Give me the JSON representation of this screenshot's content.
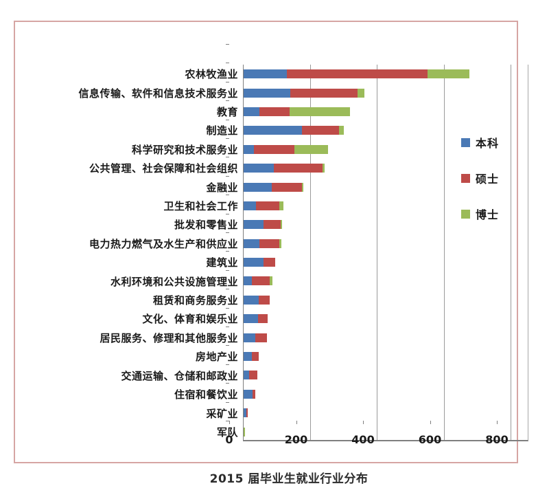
{
  "title": "2015 届毕业生就业行业分布",
  "colors": {
    "frame_border": "#D6A5A3",
    "gridline": "#999999",
    "axis": "#7f7f7f",
    "text": "#1a1a1a",
    "bachelor_blue": "#4A79B5",
    "master_red": "#BE4B48",
    "doctor_green": "#9BBB59"
  },
  "chart_data": {
    "type": "bar",
    "orientation": "horizontal",
    "stacked": true,
    "title": "2015 届毕业生就业行业分布",
    "xlabel": "",
    "ylabel": "",
    "xlim": [
      0,
      800
    ],
    "x_ticks": [
      0,
      200,
      400,
      600,
      800
    ],
    "grid": "vertical",
    "legend_position": "right-inside",
    "categories": [
      "农林牧渔业",
      "信息传输、软件和信息技术服务业",
      "教育",
      "制造业",
      "科学研究和技术服务业",
      "公共管理、社会保障和社会组织",
      "金融业",
      "卫生和社会工作",
      "批发和零售业",
      "电力热力燃气及水生产和供应业",
      "建筑业",
      "水利环境和公共设施管理业",
      "租赁和商务服务业",
      "文化、体育和娱乐业",
      "居民服务、修理和其他服务业",
      "房地产业",
      "交通运输、仓储和邮政业",
      "住宿和餐饮业",
      "采矿业",
      "军队"
    ],
    "series": [
      {
        "name": "本科",
        "color": "#4A79B5",
        "values": [
          130,
          140,
          48,
          175,
          30,
          90,
          85,
          36,
          60,
          48,
          60,
          25,
          45,
          44,
          35,
          25,
          16,
          27,
          8,
          0
        ]
      },
      {
        "name": "硕士",
        "color": "#BE4B48",
        "values": [
          420,
          200,
          90,
          110,
          122,
          145,
          90,
          70,
          50,
          58,
          34,
          52,
          32,
          28,
          34,
          20,
          25,
          8,
          4,
          0
        ]
      },
      {
        "name": "博士",
        "color": "#9BBB59",
        "values": [
          125,
          20,
          180,
          15,
          100,
          8,
          3,
          12,
          4,
          7,
          0,
          10,
          0,
          0,
          0,
          0,
          0,
          0,
          0,
          5
        ]
      }
    ]
  }
}
